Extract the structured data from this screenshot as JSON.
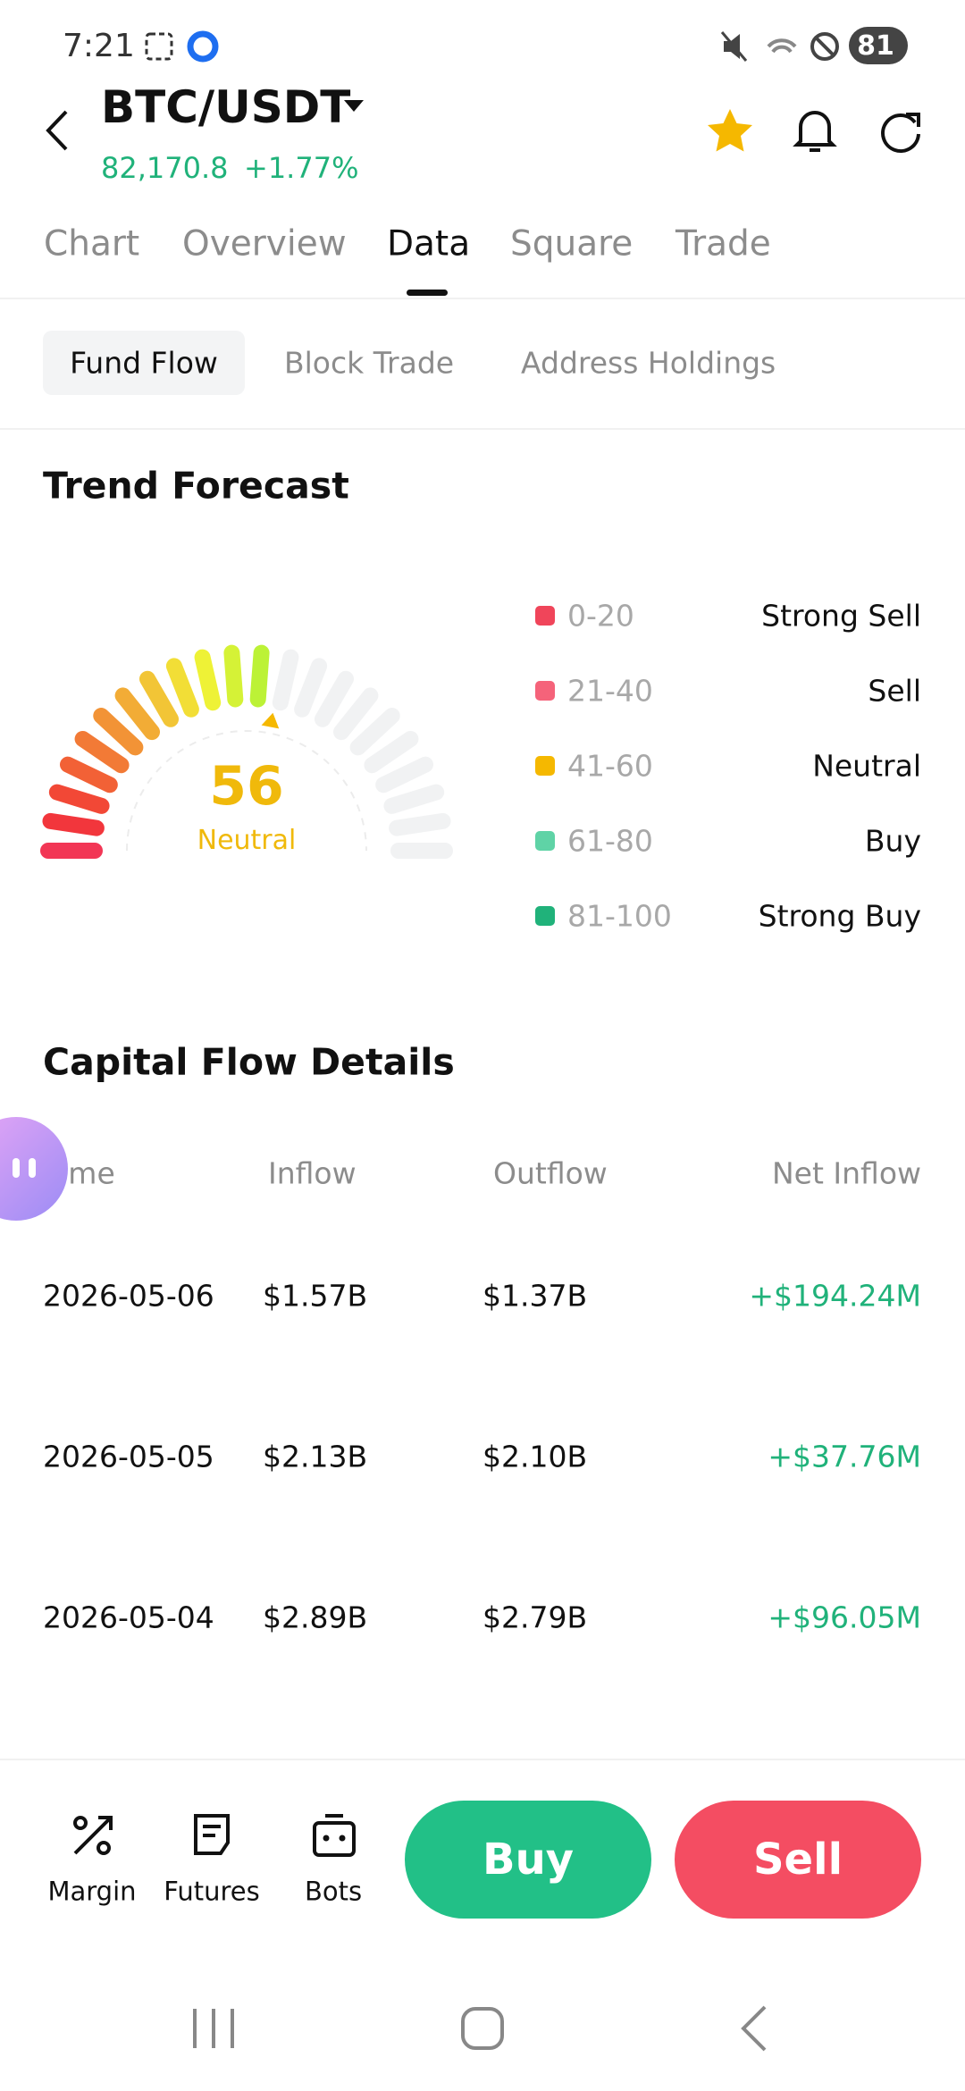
{
  "status_bar": {
    "time": "7:21",
    "battery": "81"
  },
  "header": {
    "pair": "BTC/USDT",
    "price": "82,170.8",
    "change": "+1.77%"
  },
  "tabs": [
    "Chart",
    "Overview",
    "Data",
    "Square",
    "Trade"
  ],
  "subtabs": [
    "Fund Flow",
    "Block Trade",
    "Address Holdings"
  ],
  "trend_forecast": {
    "title": "Trend Forecast",
    "score": 56,
    "rating": "Neutral",
    "legend": [
      {
        "range": "0-20",
        "label": "Strong Sell",
        "color": "#f0455a"
      },
      {
        "range": "21-40",
        "label": "Sell",
        "color": "#f5637a"
      },
      {
        "range": "41-60",
        "label": "Neutral",
        "color": "#f5b800"
      },
      {
        "range": "61-80",
        "label": "Buy",
        "color": "#5fd3a6"
      },
      {
        "range": "81-100",
        "label": "Strong Buy",
        "color": "#20b27a"
      }
    ]
  },
  "capital_flow": {
    "title": "Capital Flow Details",
    "columns": [
      "Time",
      "Inflow",
      "Outflow",
      "Net Inflow"
    ],
    "rows": [
      [
        "2026-05-06",
        "$1.57B",
        "$1.37B",
        "+$194.24M"
      ],
      [
        "2026-05-05",
        "$2.13B",
        "$2.10B",
        "+$37.76M"
      ],
      [
        "2026-05-04",
        "$2.89B",
        "$2.79B",
        "+$96.05M"
      ]
    ]
  },
  "bottom_bar": {
    "tools": [
      "Margin",
      "Futures",
      "Bots"
    ],
    "buy": "Buy",
    "sell": "Sell"
  }
}
